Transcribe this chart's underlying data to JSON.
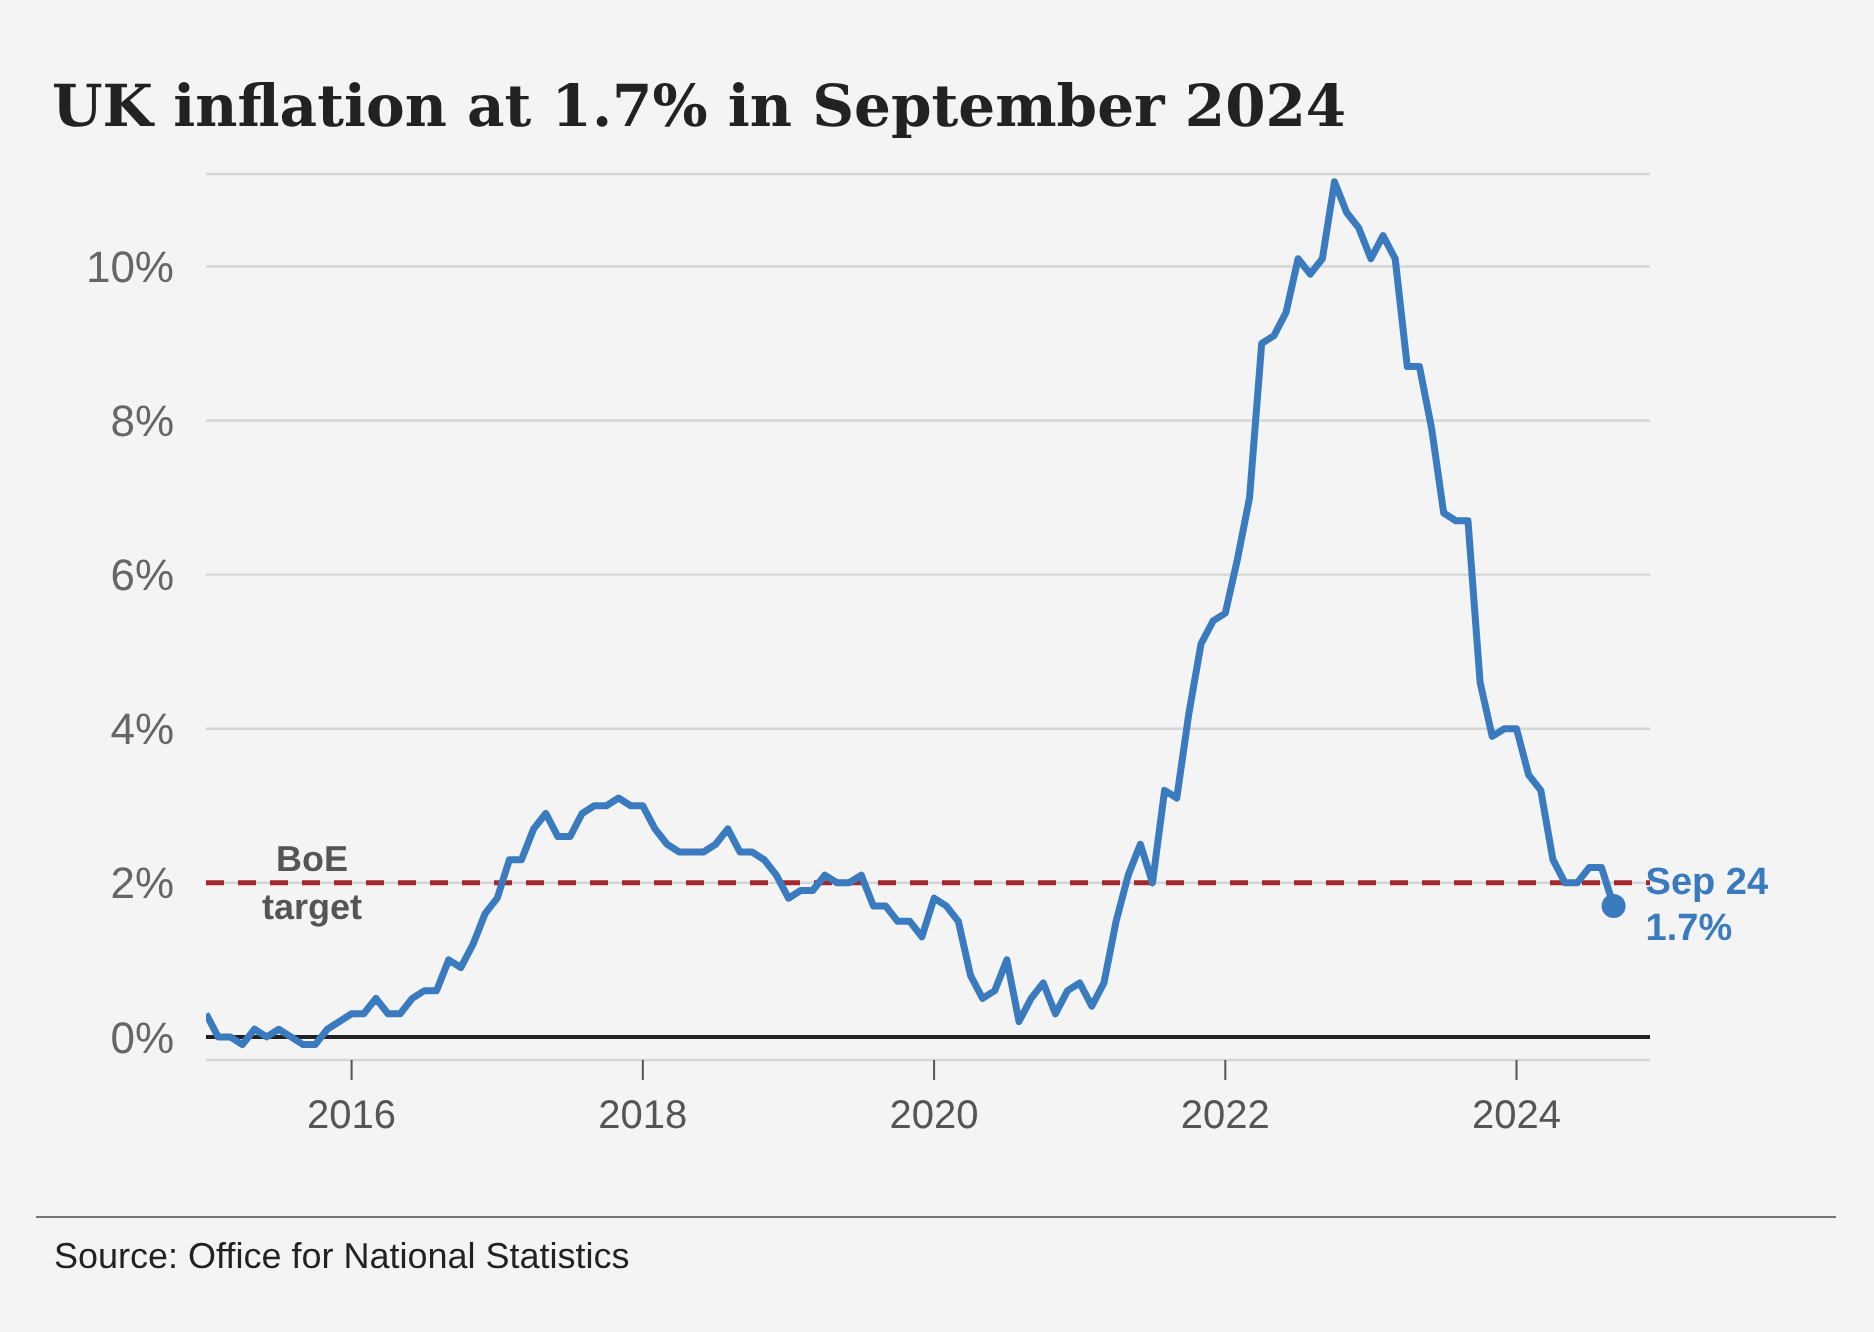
{
  "chart_data": {
    "type": "line",
    "title": "UK inflation at 1.7% in September 2024",
    "x": [
      "2015-01",
      "2015-02",
      "2015-03",
      "2015-04",
      "2015-05",
      "2015-06",
      "2015-07",
      "2015-08",
      "2015-09",
      "2015-10",
      "2015-11",
      "2015-12",
      "2016-01",
      "2016-02",
      "2016-03",
      "2016-04",
      "2016-05",
      "2016-06",
      "2016-07",
      "2016-08",
      "2016-09",
      "2016-10",
      "2016-11",
      "2016-12",
      "2017-01",
      "2017-02",
      "2017-03",
      "2017-04",
      "2017-05",
      "2017-06",
      "2017-07",
      "2017-08",
      "2017-09",
      "2017-10",
      "2017-11",
      "2017-12",
      "2018-01",
      "2018-02",
      "2018-03",
      "2018-04",
      "2018-05",
      "2018-06",
      "2018-07",
      "2018-08",
      "2018-09",
      "2018-10",
      "2018-11",
      "2018-12",
      "2019-01",
      "2019-02",
      "2019-03",
      "2019-04",
      "2019-05",
      "2019-06",
      "2019-07",
      "2019-08",
      "2019-09",
      "2019-10",
      "2019-11",
      "2019-12",
      "2020-01",
      "2020-02",
      "2020-03",
      "2020-04",
      "2020-05",
      "2020-06",
      "2020-07",
      "2020-08",
      "2020-09",
      "2020-10",
      "2020-11",
      "2020-12",
      "2021-01",
      "2021-02",
      "2021-03",
      "2021-04",
      "2021-05",
      "2021-06",
      "2021-07",
      "2021-08",
      "2021-09",
      "2021-10",
      "2021-11",
      "2021-12",
      "2022-01",
      "2022-02",
      "2022-03",
      "2022-04",
      "2022-05",
      "2022-06",
      "2022-07",
      "2022-08",
      "2022-09",
      "2022-10",
      "2022-11",
      "2022-12",
      "2023-01",
      "2023-02",
      "2023-03",
      "2023-04",
      "2023-05",
      "2023-06",
      "2023-07",
      "2023-08",
      "2023-09",
      "2023-10",
      "2023-11",
      "2023-12",
      "2024-01",
      "2024-02",
      "2024-03",
      "2024-04",
      "2024-05",
      "2024-06",
      "2024-07",
      "2024-08",
      "2024-09"
    ],
    "series": [
      {
        "color": "#3a7bbf",
        "values": [
          0.3,
          0.0,
          0.0,
          -0.1,
          0.1,
          0.0,
          0.1,
          0.0,
          -0.1,
          -0.1,
          0.1,
          0.2,
          0.3,
          0.3,
          0.5,
          0.3,
          0.3,
          0.5,
          0.6,
          0.6,
          1.0,
          0.9,
          1.2,
          1.6,
          1.8,
          2.3,
          2.3,
          2.7,
          2.9,
          2.6,
          2.6,
          2.9,
          3.0,
          3.0,
          3.1,
          3.0,
          3.0,
          2.7,
          2.5,
          2.4,
          2.4,
          2.4,
          2.5,
          2.7,
          2.4,
          2.4,
          2.3,
          2.1,
          1.8,
          1.9,
          1.9,
          2.1,
          2.0,
          2.0,
          2.1,
          1.7,
          1.7,
          1.5,
          1.5,
          1.3,
          1.8,
          1.7,
          1.5,
          0.8,
          0.5,
          0.6,
          1.0,
          0.2,
          0.5,
          0.7,
          0.3,
          0.6,
          0.7,
          0.4,
          0.7,
          1.5,
          2.1,
          2.5,
          2.0,
          3.2,
          3.1,
          4.2,
          5.1,
          5.4,
          5.5,
          6.2,
          7.0,
          9.0,
          9.1,
          9.4,
          10.1,
          9.9,
          10.1,
          11.1,
          10.7,
          10.5,
          10.1,
          10.4,
          10.1,
          8.7,
          8.7,
          7.9,
          6.8,
          6.7,
          6.7,
          4.6,
          3.9,
          4.0,
          4.0,
          3.4,
          3.2,
          2.3,
          2.0,
          2.0,
          2.2,
          2.2,
          1.7
        ]
      }
    ],
    "xlim": [
      "2015-01",
      "2024-12"
    ],
    "xticks": [
      "2016",
      "2018",
      "2020",
      "2022",
      "2024"
    ],
    "ylim": [
      -0.3,
      11.2
    ],
    "yticks": [
      {
        "value": 0,
        "label": "0%"
      },
      {
        "value": 2,
        "label": "2%"
      },
      {
        "value": 4,
        "label": "4%"
      },
      {
        "value": 6,
        "label": "6%"
      },
      {
        "value": 8,
        "label": "8%"
      },
      {
        "value": 10,
        "label": "10%"
      }
    ],
    "grid": "y",
    "marker": "none",
    "line_style": "solid",
    "ref_lines": [
      {
        "axis": "y",
        "value": 2,
        "label": "BoE target",
        "color": "#a3282c",
        "line_style": "dashed"
      }
    ],
    "annotations": [
      {
        "text": "Sep 24\n1.7%",
        "x": "2024-09",
        "y": 1.7
      },
      "Source: Office for National Statistics"
    ]
  }
}
